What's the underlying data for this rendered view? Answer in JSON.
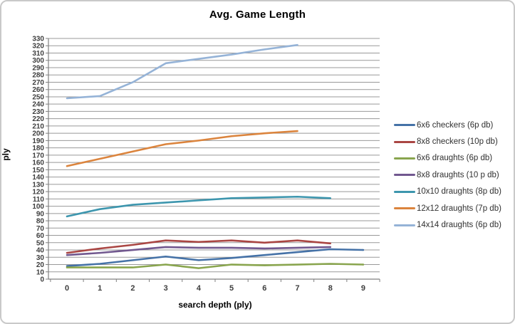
{
  "chart_data": {
    "type": "line",
    "title": "Avg. Game Length",
    "xlabel": "search depth (ply)",
    "ylabel": "ply",
    "x": [
      0,
      1,
      2,
      3,
      4,
      5,
      6,
      7,
      8,
      9
    ],
    "ylim": [
      0,
      330
    ],
    "ytick_step": 10,
    "grid": true,
    "legend_position": "right",
    "series": [
      {
        "name": "6x6 checkers (6p db)",
        "color": "#4572A7",
        "values": [
          18,
          21,
          26,
          31,
          26,
          29,
          33,
          37,
          41,
          40
        ]
      },
      {
        "name": "8x8 checkers (10p db)",
        "color": "#AA4643",
        "values": [
          36,
          42,
          47,
          53,
          51,
          53,
          50,
          53,
          49
        ]
      },
      {
        "name": "6x6 draughts (6p db)",
        "color": "#89A54E",
        "values": [
          16,
          16,
          16,
          20,
          15,
          20,
          19,
          20,
          21,
          20
        ]
      },
      {
        "name": "8x8 draughts (10 p db)",
        "color": "#71588F",
        "values": [
          33,
          36,
          40,
          44,
          43,
          43,
          42,
          43,
          44
        ]
      },
      {
        "name": "10x10 draughts (8p db)",
        "color": "#3D96AE",
        "values": [
          86,
          96,
          102,
          105,
          108,
          111,
          112,
          113,
          111
        ]
      },
      {
        "name": "12x12 draughts (7p db)",
        "color": "#DB843D",
        "values": [
          155,
          165,
          175,
          185,
          190,
          196,
          200,
          203
        ]
      },
      {
        "name": "14x14 draughts (6p db)",
        "color": "#95B3D7",
        "values": [
          248,
          251,
          270,
          296,
          302,
          308,
          315,
          321
        ]
      }
    ]
  },
  "colors": {
    "gridline": "#999999",
    "axis": "#808080",
    "background": "#ffffff",
    "border": "#c9c9c9"
  }
}
